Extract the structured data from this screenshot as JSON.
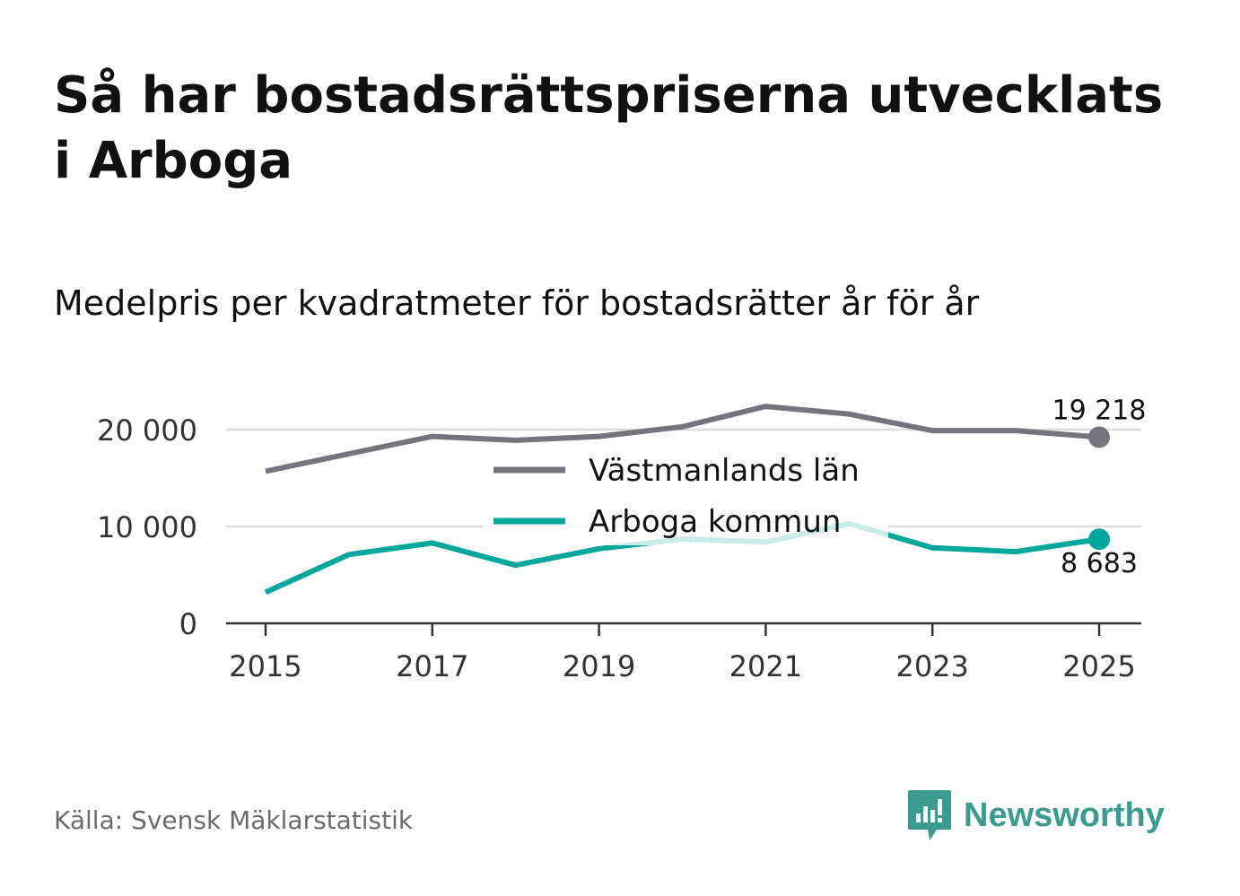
{
  "header": {
    "title": "Så har bostadsrättspriserna utvecklats i Arboga",
    "subtitle": "Medelpris per kvadratmeter för bostadsrätter år för år"
  },
  "footer": {
    "source": "Källa: Svensk Mäklarstatistik",
    "brand": "Newsworthy",
    "brand_icon": "newsworthy-logo-icon"
  },
  "colors": {
    "lan": "#75747b",
    "kommun": "#00a79a",
    "kommun_faded": "#c9ece8",
    "grid": "#dddddd",
    "axis": "#333333",
    "brand": "#3b9b8f"
  },
  "chart_data": {
    "type": "line",
    "title": "Medelpris per kvadratmeter för bostadsrätter år för år",
    "xlabel": "",
    "ylabel": "",
    "x": [
      2015,
      2016,
      2017,
      2018,
      2019,
      2020,
      2021,
      2022,
      2023,
      2024,
      2025
    ],
    "x_ticks": [
      2015,
      2017,
      2019,
      2021,
      2023,
      2025
    ],
    "x_tick_labels": [
      "2015",
      "2017",
      "2019",
      "2021",
      "2023",
      "2025"
    ],
    "y_ticks": [
      0,
      10000,
      20000
    ],
    "y_tick_labels": [
      "0",
      "10 000",
      "20 000"
    ],
    "ylim": [
      0,
      22500
    ],
    "xlim": [
      2014.75,
      2025.25
    ],
    "grid": true,
    "legend_position": "center",
    "series": [
      {
        "name": "Västmanlands län",
        "values": [
          15700,
          17500,
          19300,
          18900,
          19300,
          20300,
          22400,
          21600,
          19900,
          19900,
          19218
        ],
        "end_label": "19 218"
      },
      {
        "name": "Arboga kommun",
        "values": [
          3200,
          7100,
          8300,
          6000,
          7700,
          8700,
          8400,
          10300,
          7800,
          7400,
          8683
        ],
        "end_label": "8 683"
      }
    ]
  }
}
